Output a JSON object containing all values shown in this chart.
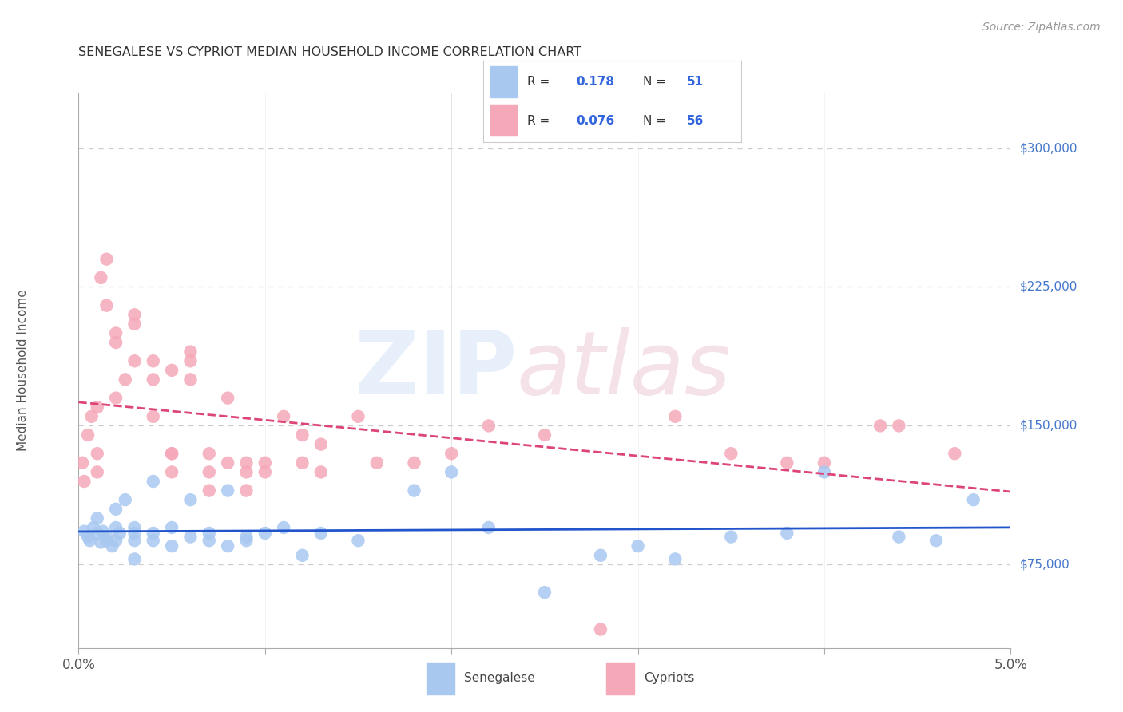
{
  "title": "SENEGALESE VS CYPRIOT MEDIAN HOUSEHOLD INCOME CORRELATION CHART",
  "source": "Source: ZipAtlas.com",
  "ylabel": "Median Household Income",
  "y_ticks": [
    75000,
    150000,
    225000,
    300000
  ],
  "y_tick_labels": [
    "$75,000",
    "$150,000",
    "$225,000",
    "$300,000"
  ],
  "x_min": 0.0,
  "x_max": 0.05,
  "y_min": 30000,
  "y_max": 330000,
  "senegalese_R": 0.178,
  "senegalese_N": 51,
  "cypriot_R": 0.076,
  "cypriot_N": 56,
  "senegalese_color": "#a8c8f0",
  "cypriot_color": "#f5a8b8",
  "trend_senegalese_color": "#2255cc",
  "trend_cypriot_color": "#dd4477",
  "legend_text_color": "#3366dd",
  "label_color": "#555555",
  "background_color": "#ffffff",
  "grid_color": "#cccccc",
  "right_label_color": "#4477cc",
  "senegalese_x": [
    0.0003,
    0.0005,
    0.0006,
    0.0008,
    0.001,
    0.001,
    0.0012,
    0.0013,
    0.0015,
    0.0015,
    0.0018,
    0.002,
    0.002,
    0.002,
    0.0022,
    0.0025,
    0.003,
    0.003,
    0.003,
    0.003,
    0.004,
    0.004,
    0.004,
    0.005,
    0.005,
    0.006,
    0.006,
    0.007,
    0.007,
    0.008,
    0.008,
    0.009,
    0.009,
    0.01,
    0.011,
    0.012,
    0.013,
    0.015,
    0.018,
    0.02,
    0.022,
    0.025,
    0.028,
    0.03,
    0.032,
    0.035,
    0.038,
    0.04,
    0.044,
    0.046,
    0.048
  ],
  "senegalese_y": [
    93000,
    90000,
    88000,
    95000,
    92000,
    100000,
    87000,
    93000,
    90000,
    88000,
    85000,
    95000,
    88000,
    105000,
    92000,
    110000,
    88000,
    95000,
    92000,
    78000,
    88000,
    92000,
    120000,
    85000,
    95000,
    90000,
    110000,
    88000,
    92000,
    85000,
    115000,
    90000,
    88000,
    92000,
    95000,
    80000,
    92000,
    88000,
    115000,
    125000,
    95000,
    60000,
    80000,
    85000,
    78000,
    90000,
    92000,
    125000,
    90000,
    88000,
    110000
  ],
  "cypriot_x": [
    0.0002,
    0.0003,
    0.0005,
    0.0007,
    0.001,
    0.001,
    0.001,
    0.0012,
    0.0015,
    0.0015,
    0.002,
    0.002,
    0.002,
    0.0025,
    0.003,
    0.003,
    0.003,
    0.004,
    0.004,
    0.004,
    0.005,
    0.005,
    0.005,
    0.005,
    0.006,
    0.006,
    0.006,
    0.007,
    0.007,
    0.007,
    0.008,
    0.008,
    0.009,
    0.009,
    0.009,
    0.01,
    0.01,
    0.011,
    0.012,
    0.012,
    0.013,
    0.013,
    0.015,
    0.016,
    0.018,
    0.02,
    0.022,
    0.025,
    0.028,
    0.032,
    0.035,
    0.038,
    0.04,
    0.043,
    0.044,
    0.047
  ],
  "cypriot_y": [
    130000,
    120000,
    145000,
    155000,
    125000,
    160000,
    135000,
    230000,
    240000,
    215000,
    195000,
    200000,
    165000,
    175000,
    185000,
    205000,
    210000,
    175000,
    185000,
    155000,
    135000,
    125000,
    180000,
    135000,
    185000,
    190000,
    175000,
    115000,
    135000,
    125000,
    130000,
    165000,
    115000,
    125000,
    130000,
    125000,
    130000,
    155000,
    130000,
    145000,
    125000,
    140000,
    155000,
    130000,
    130000,
    135000,
    150000,
    145000,
    40000,
    155000,
    135000,
    130000,
    130000,
    150000,
    150000,
    135000
  ]
}
